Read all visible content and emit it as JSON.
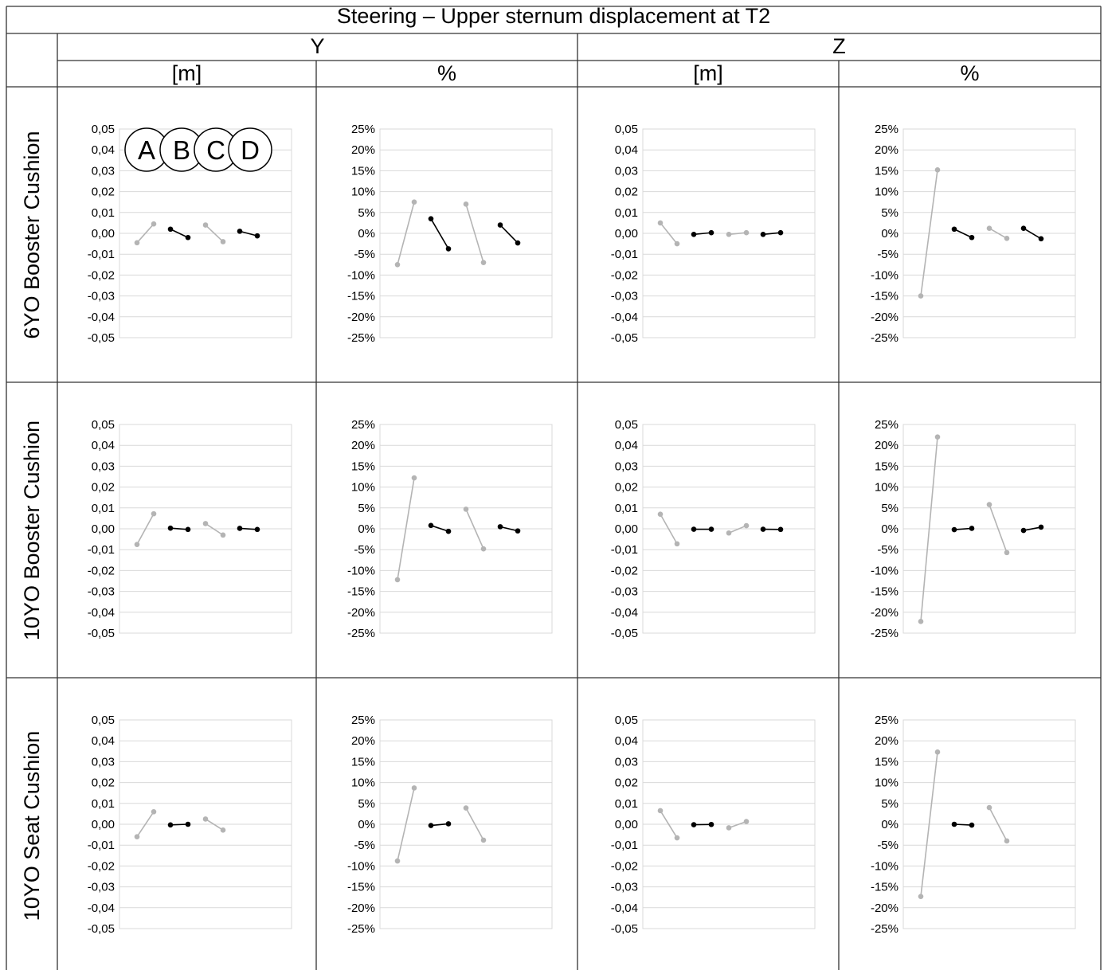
{
  "title": "Steering – Upper sternum displacement at T2",
  "groups": [
    "Y",
    "Z"
  ],
  "units": [
    "[m]",
    "%",
    "[m]",
    "%"
  ],
  "rows": [
    "6YO Booster Cushion",
    "10YO Booster Cushion",
    "10YO Seat Cushion"
  ],
  "legend": [
    "A",
    "B",
    "C",
    "D"
  ],
  "colors": {
    "light": "#b4b4b4",
    "dark": "#000000",
    "grid": "#d9d9d9",
    "border": "#333333"
  },
  "tick_labels": {
    "m": [
      "-0,05",
      "-0,04",
      "-0,03",
      "-0,02",
      "-0,01",
      "0,00",
      "0,01",
      "0,02",
      "0,03",
      "0,04",
      "0,05"
    ],
    "pct": [
      "-25%",
      "-20%",
      "-15%",
      "-10%",
      "-5%",
      "0%",
      "5%",
      "10%",
      "15%",
      "20%",
      "25%"
    ]
  },
  "chart_data": [
    {
      "type": "line",
      "row": "6YO Booster Cushion",
      "column": "Y [m]",
      "ylim": [
        -0.05,
        0.05
      ],
      "series": [
        {
          "values": [
            -0.0045,
            0.0045
          ],
          "color": "light"
        },
        {
          "values": [
            0.002,
            -0.002
          ],
          "color": "dark"
        },
        {
          "values": [
            0.004,
            -0.004
          ],
          "color": "light"
        },
        {
          "values": [
            0.001,
            -0.0012
          ],
          "color": "dark"
        }
      ]
    },
    {
      "type": "line",
      "row": "6YO Booster Cushion",
      "column": "Y %",
      "ylim": [
        -25,
        25
      ],
      "series": [
        {
          "values": [
            -7.5,
            7.5
          ],
          "color": "light"
        },
        {
          "values": [
            3.5,
            -3.7
          ],
          "color": "dark"
        },
        {
          "values": [
            7.0,
            -7.0
          ],
          "color": "light"
        },
        {
          "values": [
            2.0,
            -2.3
          ],
          "color": "dark"
        }
      ]
    },
    {
      "type": "line",
      "row": "6YO Booster Cushion",
      "column": "Z [m]",
      "ylim": [
        -0.05,
        0.05
      ],
      "series": [
        {
          "values": [
            0.005,
            -0.005
          ],
          "color": "light"
        },
        {
          "values": [
            -0.0005,
            0.0003
          ],
          "color": "dark"
        },
        {
          "values": [
            -0.0005,
            0.0003
          ],
          "color": "light"
        },
        {
          "values": [
            -0.0005,
            0.0003
          ],
          "color": "dark"
        }
      ]
    },
    {
      "type": "line",
      "row": "6YO Booster Cushion",
      "column": "Z %",
      "ylim": [
        -25,
        25
      ],
      "series": [
        {
          "values": [
            -15.0,
            15.2
          ],
          "color": "light"
        },
        {
          "values": [
            1.0,
            -1.0
          ],
          "color": "dark"
        },
        {
          "values": [
            1.2,
            -1.2
          ],
          "color": "light"
        },
        {
          "values": [
            1.2,
            -1.3
          ],
          "color": "dark"
        }
      ]
    },
    {
      "type": "line",
      "row": "10YO Booster Cushion",
      "column": "Y [m]",
      "ylim": [
        -0.05,
        0.05
      ],
      "series": [
        {
          "values": [
            -0.0075,
            0.0072
          ],
          "color": "light"
        },
        {
          "values": [
            0.0003,
            -0.0003
          ],
          "color": "dark"
        },
        {
          "values": [
            0.0025,
            -0.003
          ],
          "color": "light"
        },
        {
          "values": [
            0.0002,
            -0.0003
          ],
          "color": "dark"
        }
      ]
    },
    {
      "type": "line",
      "row": "10YO Booster Cushion",
      "column": "Y %",
      "ylim": [
        -25,
        25
      ],
      "series": [
        {
          "values": [
            -12.2,
            12.2
          ],
          "color": "light"
        },
        {
          "values": [
            0.8,
            -0.6
          ],
          "color": "dark"
        },
        {
          "values": [
            4.7,
            -4.8
          ],
          "color": "light"
        },
        {
          "values": [
            0.5,
            -0.5
          ],
          "color": "dark"
        }
      ]
    },
    {
      "type": "line",
      "row": "10YO Booster Cushion",
      "column": "Z [m]",
      "ylim": [
        -0.05,
        0.05
      ],
      "series": [
        {
          "values": [
            0.007,
            -0.0072
          ],
          "color": "light"
        },
        {
          "values": [
            -0.0002,
            -0.0002
          ],
          "color": "dark"
        },
        {
          "values": [
            -0.002,
            0.0015
          ],
          "color": "light"
        },
        {
          "values": [
            -0.0002,
            -0.0003
          ],
          "color": "dark"
        }
      ]
    },
    {
      "type": "line",
      "row": "10YO Booster Cushion",
      "column": "Z %",
      "ylim": [
        -25,
        25
      ],
      "series": [
        {
          "values": [
            -22.2,
            22.0
          ],
          "color": "light"
        },
        {
          "values": [
            -0.2,
            0.1
          ],
          "color": "dark"
        },
        {
          "values": [
            5.8,
            -5.7
          ],
          "color": "light"
        },
        {
          "values": [
            -0.4,
            0.4
          ],
          "color": "dark"
        }
      ]
    },
    {
      "type": "line",
      "row": "10YO Seat Cushion",
      "column": "Y [m]",
      "ylim": [
        -0.05,
        0.05
      ],
      "series": [
        {
          "values": [
            -0.006,
            0.006
          ],
          "color": "light"
        },
        {
          "values": [
            -0.0003,
            0.0
          ],
          "color": "dark"
        },
        {
          "values": [
            0.0025,
            -0.0028
          ],
          "color": "light"
        }
      ]
    },
    {
      "type": "line",
      "row": "10YO Seat Cushion",
      "column": "Y %",
      "ylim": [
        -25,
        25
      ],
      "series": [
        {
          "values": [
            -8.8,
            8.7
          ],
          "color": "light"
        },
        {
          "values": [
            -0.3,
            0.1
          ],
          "color": "dark"
        },
        {
          "values": [
            3.9,
            -3.8
          ],
          "color": "light"
        }
      ]
    },
    {
      "type": "line",
      "row": "10YO Seat Cushion",
      "column": "Z [m]",
      "ylim": [
        -0.05,
        0.05
      ],
      "series": [
        {
          "values": [
            0.0065,
            -0.0065
          ],
          "color": "light"
        },
        {
          "values": [
            -0.0002,
            -0.0001
          ],
          "color": "dark"
        },
        {
          "values": [
            -0.0017,
            0.0013
          ],
          "color": "light"
        }
      ]
    },
    {
      "type": "line",
      "row": "10YO Seat Cushion",
      "column": "Z %",
      "ylim": [
        -25,
        25
      ],
      "series": [
        {
          "values": [
            -17.3,
            17.3
          ],
          "color": "light"
        },
        {
          "values": [
            0.0,
            -0.2
          ],
          "color": "dark"
        },
        {
          "values": [
            4.0,
            -4.0
          ],
          "color": "light"
        }
      ]
    }
  ]
}
